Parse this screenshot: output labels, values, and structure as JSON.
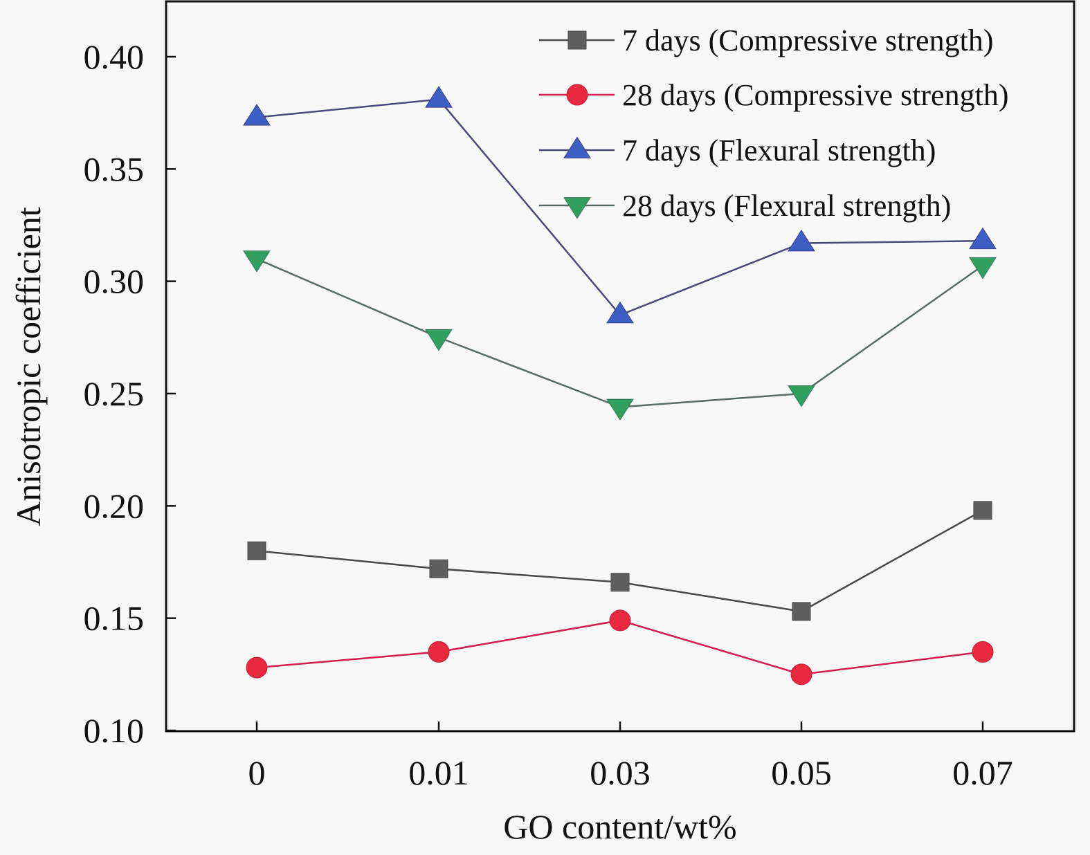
{
  "chart_data": {
    "type": "line",
    "title": "",
    "xlabel": "GO content/wt%",
    "ylabel": "Anisotropic coefficient",
    "categories": [
      "0",
      "0.01",
      "0.03",
      "0.05",
      "0.07"
    ],
    "ylim": [
      0.1,
      0.42
    ],
    "yticks": [
      0.1,
      0.15,
      0.2,
      0.25,
      0.3,
      0.35,
      0.4
    ],
    "ytick_labels": [
      "0.10",
      "0.15",
      "0.20",
      "0.25",
      "0.30",
      "0.35",
      "0.40"
    ],
    "grid": false,
    "legend_position": "top-right",
    "series": [
      {
        "name": "7 days (Compressive strength)",
        "marker": "square",
        "color": "#5f5f5f",
        "line_color": "#4a4a4a",
        "values": [
          0.18,
          0.172,
          0.166,
          0.153,
          0.198
        ]
      },
      {
        "name": "28 days (Compressive strength)",
        "marker": "circle",
        "color": "#e8283f",
        "line_color": "#d41c50",
        "values": [
          0.128,
          0.135,
          0.149,
          0.125,
          0.135
        ]
      },
      {
        "name": "7 days (Flexural strength)",
        "marker": "triangle-up",
        "color": "#3d5fc4",
        "line_color": "#4a4a7a",
        "values": [
          0.373,
          0.381,
          0.285,
          0.317,
          0.318
        ]
      },
      {
        "name": "28 days (Flexural strength)",
        "marker": "triangle-down",
        "color": "#2fa05e",
        "line_color": "#5a6a66",
        "values": [
          0.31,
          0.275,
          0.244,
          0.25,
          0.307
        ]
      }
    ]
  }
}
